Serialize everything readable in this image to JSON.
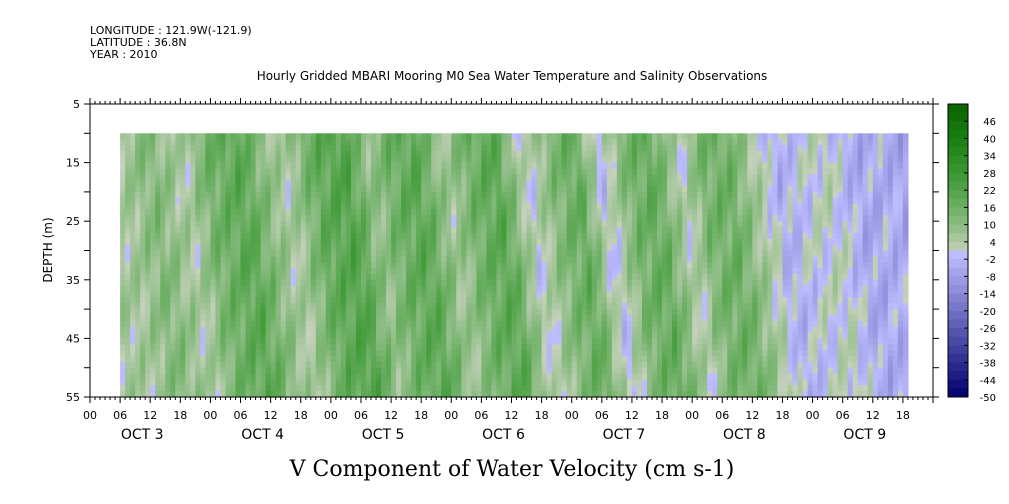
{
  "header": {
    "longitude": "LONGITUDE : 121.9W(-121.9)",
    "latitude": "LATITUDE : 36.8N",
    "year": "YEAR : 2010"
  },
  "chart_data": {
    "type": "heatmap",
    "title": "Hourly Gridded MBARI Mooring M0 Sea Water Temperature and Salinity Observations",
    "xlabel": "V Component of Water Velocity (cm s-1)",
    "ylabel": "DEPTH (m)",
    "ylim": [
      55,
      5
    ],
    "y_ticks": [
      "5",
      "15",
      "25",
      "35",
      "45",
      "55"
    ],
    "data_depth_range": [
      10,
      55
    ],
    "x_hour_ticks": [
      "00",
      "06",
      "12",
      "18",
      "00",
      "06",
      "12",
      "18",
      "00",
      "06",
      "12",
      "18",
      "00",
      "06",
      "12",
      "18",
      "00",
      "06",
      "12",
      "18",
      "00",
      "06",
      "12",
      "18",
      "00",
      "06",
      "12",
      "18"
    ],
    "x_day_labels": [
      "OCT 3",
      "OCT 4",
      "OCT 5",
      "OCT 6",
      "OCT 7",
      "OCT 8",
      "OCT 9"
    ],
    "data_time_range_hours": [
      6,
      163
    ],
    "colorbar": {
      "labels": [
        "46",
        "40",
        "34",
        "28",
        "22",
        "16",
        "10",
        "4",
        "-2",
        "-8",
        "-14",
        "-20",
        "-26",
        "-32",
        "-38",
        "-44",
        "-50"
      ],
      "range": [
        -50,
        52
      ],
      "step": 3
    },
    "bands": [
      {
        "t": 6,
        "v": 6
      },
      {
        "t": 11,
        "v": 12
      },
      {
        "t": 18,
        "v": 4
      },
      {
        "t": 22,
        "v": 14
      },
      {
        "t": 29,
        "v": 20
      },
      {
        "t": 34,
        "v": 10
      },
      {
        "t": 38,
        "v": 4
      },
      {
        "t": 44,
        "v": 18
      },
      {
        "t": 50,
        "v": 22
      },
      {
        "t": 55,
        "v": 8
      },
      {
        "t": 59,
        "v": 16
      },
      {
        "t": 64,
        "v": 20
      },
      {
        "t": 70,
        "v": 6
      },
      {
        "t": 75,
        "v": 16
      },
      {
        "t": 80,
        "v": 20
      },
      {
        "t": 86,
        "v": 0
      },
      {
        "t": 91,
        "v": 12
      },
      {
        "t": 96,
        "v": 18
      },
      {
        "t": 101,
        "v": -2
      },
      {
        "t": 106,
        "v": 14
      },
      {
        "t": 111,
        "v": 18
      },
      {
        "t": 117,
        "v": 2
      },
      {
        "t": 121,
        "v": 14
      },
      {
        "t": 126,
        "v": 16
      },
      {
        "t": 132,
        "v": 4
      },
      {
        "t": 136,
        "v": -4
      },
      {
        "t": 141,
        "v": 0
      },
      {
        "t": 146,
        "v": 2
      },
      {
        "t": 152,
        "v": -6
      },
      {
        "t": 157,
        "v": -4
      },
      {
        "t": 163,
        "v": -8
      }
    ]
  }
}
